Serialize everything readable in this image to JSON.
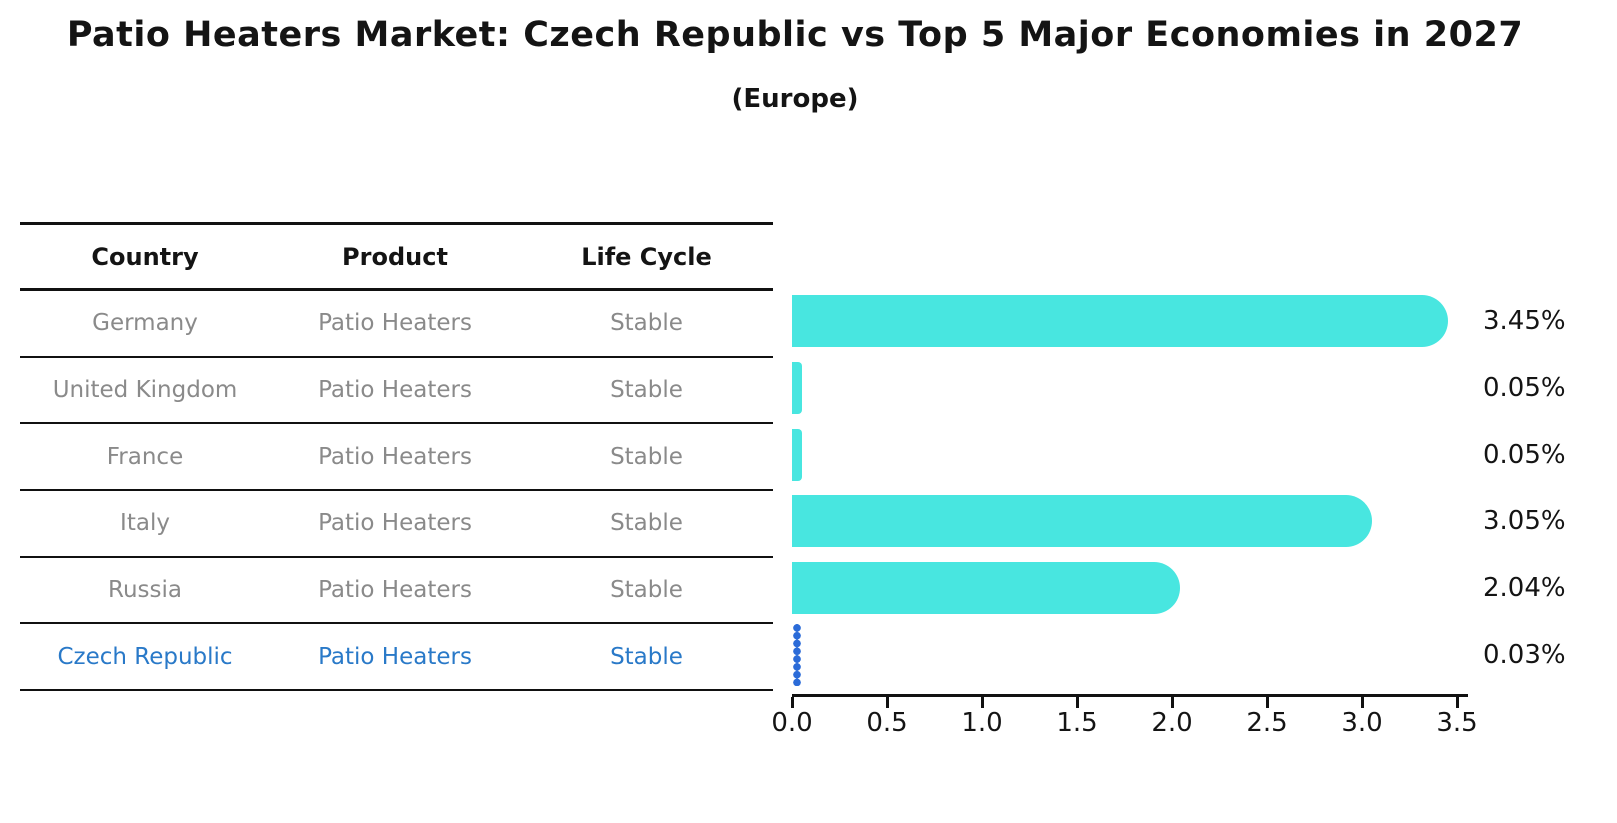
{
  "title": "Patio Heaters Market: Czech Republic vs Top 5 Major Economies in 2027",
  "subtitle": "(Europe)",
  "table": {
    "headers": [
      "Country",
      "Product",
      "Life Cycle"
    ],
    "rows": [
      {
        "country": "Germany",
        "product": "Patio Heaters",
        "life_cycle": "Stable",
        "highlight": false
      },
      {
        "country": "United Kingdom",
        "product": "Patio Heaters",
        "life_cycle": "Stable",
        "highlight": false
      },
      {
        "country": "France",
        "product": "Patio Heaters",
        "life_cycle": "Stable",
        "highlight": false
      },
      {
        "country": "Italy",
        "product": "Patio Heaters",
        "life_cycle": "Stable",
        "highlight": false
      },
      {
        "country": "Russia",
        "product": "Patio Heaters",
        "life_cycle": "Stable",
        "highlight": false
      },
      {
        "country": "Czech Republic",
        "product": "Patio Heaters",
        "life_cycle": "Stable",
        "highlight": true
      }
    ]
  },
  "chart_data": {
    "type": "bar",
    "orientation": "horizontal",
    "title": "Patio Heaters Market: Czech Republic vs Top 5 Major Economies in 2027",
    "subtitle": "(Europe)",
    "categories": [
      "Germany",
      "United Kingdom",
      "France",
      "Italy",
      "Russia",
      "Czech Republic"
    ],
    "values": [
      3.45,
      0.05,
      0.05,
      3.05,
      2.04,
      0.03
    ],
    "value_labels": [
      "3.45%",
      "0.05%",
      "0.05%",
      "3.05%",
      "2.04%",
      "0.03%"
    ],
    "xlim": [
      0,
      3.5
    ],
    "x_ticks": [
      "0.0",
      "0.5",
      "1.0",
      "1.5",
      "2.0",
      "2.5",
      "3.0",
      "3.5"
    ],
    "grid": false,
    "legend": false,
    "highlight_index": 5
  },
  "colors": {
    "bar_color": "#48e6e0",
    "highlight_bar_color": "#2b6bd8",
    "highlight_text_color": "#2979c8",
    "row_text_color": "#8a8a8a",
    "text_color": "#141414"
  }
}
